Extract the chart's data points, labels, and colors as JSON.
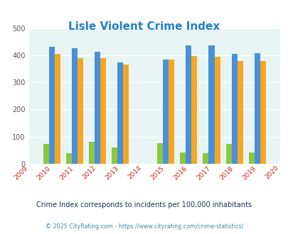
{
  "title": "Lisle Violent Crime Index",
  "all_years": [
    2009,
    2010,
    2011,
    2012,
    2013,
    2014,
    2015,
    2016,
    2017,
    2018,
    2019,
    2020
  ],
  "data_years": [
    2010,
    2011,
    2012,
    2013,
    2015,
    2016,
    2017,
    2018,
    2019
  ],
  "lisle": [
    72,
    38,
    82,
    60,
    76,
    42,
    38,
    72,
    43
  ],
  "illinois": [
    432,
    427,
    413,
    373,
    383,
    437,
    436,
    404,
    407
  ],
  "national": [
    405,
    388,
    388,
    367,
    383,
    397,
    394,
    379,
    379
  ],
  "lisle_color": "#8dc63f",
  "illinois_color": "#4a90d9",
  "national_color": "#f5a623",
  "bg_color": "#e8f4f4",
  "ylim": [
    0,
    500
  ],
  "yticks": [
    0,
    100,
    200,
    300,
    400,
    500
  ],
  "bar_width": 0.25,
  "subtitle": "Crime Index corresponds to incidents per 100,000 inhabitants",
  "footer": "© 2025 CityRating.com - https://www.cityrating.com/crime-statistics/",
  "title_color": "#2080c8",
  "subtitle_color": "#1a3060",
  "footer_color": "#4488aa",
  "legend_text_color": "#800080",
  "xtick_color": "#cc2222"
}
